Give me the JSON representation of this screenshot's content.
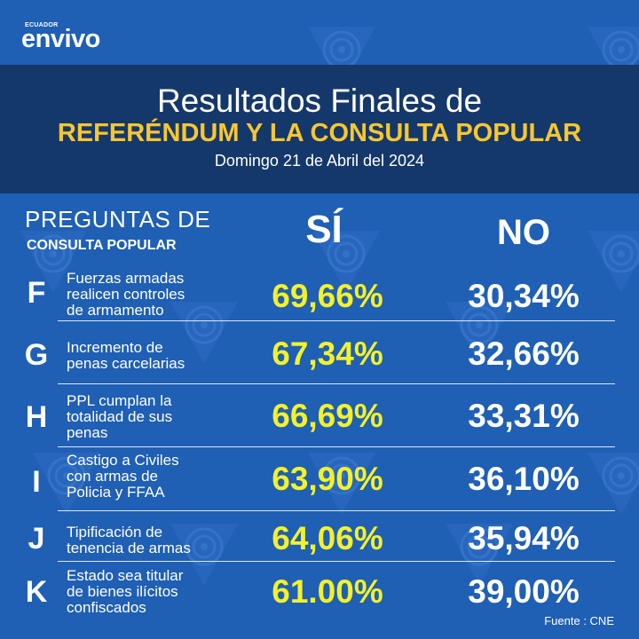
{
  "brand": {
    "small": "ECUADOR",
    "main": "envivo"
  },
  "header": {
    "title_line1": "Resultados Finales de",
    "title_line2": "REFERÉNDUM Y LA CONSULTA POPULAR",
    "date": "Domingo 21 de Abril del 2024"
  },
  "columns": {
    "questions_line1": "PREGUNTAS DE",
    "questions_line2": "CONSULTA POPULAR",
    "yes": "SÍ",
    "no": "NO"
  },
  "rows": [
    {
      "letter": "F",
      "text_lines": [
        "Fuerzas armadas",
        "realicen controles",
        "de armamento"
      ],
      "yes": "69,66%",
      "no": "30,34%"
    },
    {
      "letter": "G",
      "text_lines": [
        "Incremento de",
        "penas carcelarias"
      ],
      "yes": "67,34%",
      "no": "32,66%"
    },
    {
      "letter": "H",
      "text_lines": [
        "PPL cumplan la",
        "totalidad de sus",
        "penas"
      ],
      "yes": "66,69%",
      "no": "33,31%"
    },
    {
      "letter": "I",
      "text_lines": [
        "Castigo a Civiles",
        "con armas de",
        "Policia y FFAA"
      ],
      "yes": "63,90%",
      "no": "36,10%"
    },
    {
      "letter": "J",
      "text_lines": [
        "Tipificación de",
        "tenencia de armas"
      ],
      "yes": "64,06%",
      "no": "35,94%"
    },
    {
      "letter": "K",
      "text_lines": [
        "Estado sea titular",
        "de bienes ilícitos",
        "confiscados"
      ],
      "yes": "61.00%",
      "no": "39,00%"
    }
  ],
  "source": "Fuente : CNE",
  "colors": {
    "background": "#1f5fb4",
    "header_band": "#15386b",
    "accent_yellow": "#f8c630",
    "yes_value": "#f3f12a"
  }
}
